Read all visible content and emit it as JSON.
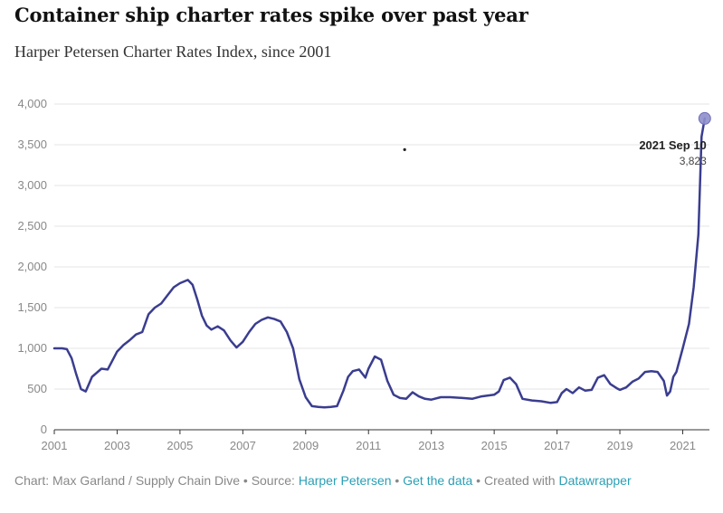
{
  "chart_data": {
    "type": "line",
    "title": "Container ship charter rates spike over past year",
    "subtitle": "Harper Petersen Charter Rates Index, since 2001",
    "xlabel": "",
    "ylabel": "",
    "ylim": [
      0,
      4000
    ],
    "xlim": [
      2001,
      2021.85
    ],
    "y_ticks": [
      0,
      500,
      1000,
      1500,
      2000,
      2500,
      3000,
      3500,
      4000
    ],
    "y_tick_labels": [
      "0",
      "500",
      "1,000",
      "1,500",
      "2,000",
      "2,500",
      "3,000",
      "3,500",
      "4,000"
    ],
    "x_ticks": [
      2001,
      2003,
      2005,
      2007,
      2009,
      2011,
      2013,
      2015,
      2017,
      2019,
      2021
    ],
    "x_tick_labels": [
      "2001",
      "2003",
      "2005",
      "2007",
      "2009",
      "2011",
      "2013",
      "2015",
      "2017",
      "2019",
      "2021"
    ],
    "grid": true,
    "series": [
      {
        "name": "Harper Petersen Charter Rates Index",
        "color": "#3a3d8f",
        "x": [
          2001.0,
          2001.25,
          2001.4,
          2001.55,
          2001.7,
          2001.85,
          2002.0,
          2002.2,
          2002.35,
          2002.5,
          2002.7,
          2003.0,
          2003.2,
          2003.4,
          2003.6,
          2003.8,
          2004.0,
          2004.2,
          2004.4,
          2004.6,
          2004.8,
          2005.0,
          2005.25,
          2005.4,
          2005.55,
          2005.7,
          2005.85,
          2006.0,
          2006.2,
          2006.4,
          2006.6,
          2006.8,
          2007.0,
          2007.2,
          2007.4,
          2007.6,
          2007.8,
          2008.0,
          2008.2,
          2008.4,
          2008.6,
          2008.8,
          2009.0,
          2009.2,
          2009.4,
          2009.6,
          2009.8,
          2010.0,
          2010.2,
          2010.35,
          2010.5,
          2010.7,
          2010.9,
          2011.0,
          2011.2,
          2011.4,
          2011.6,
          2011.8,
          2012.0,
          2012.2,
          2012.4,
          2012.6,
          2012.8,
          2013.0,
          2013.3,
          2013.6,
          2014.0,
          2014.3,
          2014.6,
          2015.0,
          2015.15,
          2015.3,
          2015.5,
          2015.7,
          2015.9,
          2016.2,
          2016.5,
          2016.8,
          2017.0,
          2017.15,
          2017.3,
          2017.5,
          2017.7,
          2017.9,
          2018.1,
          2018.3,
          2018.5,
          2018.7,
          2018.9,
          2019.0,
          2019.2,
          2019.4,
          2019.6,
          2019.8,
          2020.0,
          2020.2,
          2020.4,
          2020.5,
          2020.6,
          2020.7,
          2020.8,
          2021.0,
          2021.2,
          2021.35,
          2021.5,
          2021.6,
          2021.7
        ],
        "y": [
          1000,
          1000,
          990,
          880,
          680,
          500,
          470,
          650,
          700,
          750,
          740,
          960,
          1040,
          1100,
          1170,
          1200,
          1420,
          1500,
          1550,
          1650,
          1750,
          1800,
          1840,
          1780,
          1600,
          1400,
          1280,
          1230,
          1270,
          1220,
          1100,
          1010,
          1080,
          1200,
          1300,
          1350,
          1380,
          1360,
          1330,
          1200,
          1000,
          620,
          400,
          290,
          280,
          275,
          280,
          290,
          480,
          650,
          720,
          740,
          640,
          750,
          900,
          860,
          600,
          430,
          390,
          380,
          460,
          410,
          380,
          370,
          400,
          400,
          390,
          380,
          410,
          430,
          470,
          610,
          640,
          560,
          380,
          360,
          350,
          330,
          340,
          450,
          500,
          450,
          520,
          480,
          490,
          640,
          670,
          560,
          510,
          490,
          520,
          590,
          630,
          710,
          720,
          710,
          600,
          420,
          470,
          650,
          710,
          1000,
          1300,
          1750,
          2400,
          3600,
          3823
        ]
      }
    ],
    "annotations": [
      {
        "label": "2021 Sep 10",
        "value_label": "3,823",
        "x": 2021.7,
        "y": 3823
      }
    ],
    "stray_marks": [
      {
        "x": 2012.15,
        "y": 3440
      }
    ]
  },
  "footer": {
    "chart_credit": "Chart: Max Garland / Supply Chain Dive",
    "sep1": " • ",
    "source_prefix": "Source: ",
    "source_link": "Harper Petersen",
    "sep2": " • ",
    "data_link": "Get the data",
    "sep3": " • ",
    "created_prefix": "Created with ",
    "created_link": "Datawrapper"
  }
}
